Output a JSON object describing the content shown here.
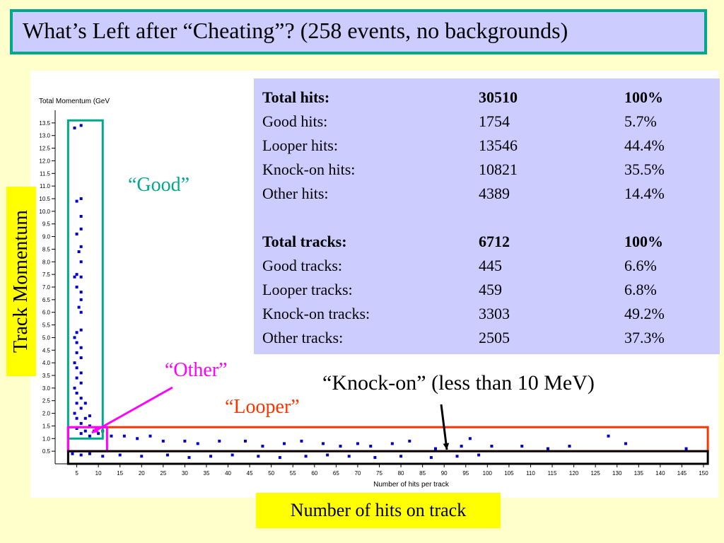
{
  "title": "What’s Left after “Cheating”? (258 events, no backgrounds)",
  "side_label": "Track Momentum",
  "bottom_label": "Number of hits on track",
  "stats": {
    "rows": [
      {
        "label": "Total hits:",
        "count": "30510",
        "pct": "100%",
        "bold": true
      },
      {
        "label": "Good hits:",
        "count": "1754",
        "pct": "5.7%"
      },
      {
        "label": "Looper hits:",
        "count": "13546",
        "pct": "44.4%"
      },
      {
        "label": "Knock-on hits:",
        "count": "10821",
        "pct": "35.5%"
      },
      {
        "label": "Other hits:",
        "count": "4389",
        "pct": "14.4%"
      },
      {
        "spacer": true
      },
      {
        "label": "Total tracks:",
        "count": "6712",
        "pct": "100%",
        "bold": true
      },
      {
        "label": "Good tracks:",
        "count": "445",
        "pct": "6.6%"
      },
      {
        "label": "Looper tracks:",
        "count": "459",
        "pct": "6.8%"
      },
      {
        "label": "Knock-on tracks:",
        "count": "3303",
        "pct": "49.2%"
      },
      {
        "label": "Other tracks:",
        "count": "2505",
        "pct": "37.3%"
      }
    ]
  },
  "annotations": {
    "good": "“Good”",
    "other": "“Other”",
    "looper": "“Looper”",
    "knock_on": "“Knock-on” (less than 10 MeV)"
  },
  "colors": {
    "background": "#ffffcc",
    "title_border": "#00a98c",
    "title_fill": "#ccccff",
    "points": "#0000cc",
    "good_box": "#00a98c",
    "other_box": "#ff00ff",
    "looper_box": "#ff3300",
    "knock_box": "#000000",
    "label_fill": "#ffff00"
  },
  "chart_data": {
    "type": "scatter",
    "ylabel": "Total Momentum (GeV",
    "xlabel": "Number of hits per track",
    "xlim": [
      0,
      150
    ],
    "ylim": [
      0,
      14
    ],
    "xticks": [
      5,
      10,
      15,
      20,
      25,
      30,
      35,
      40,
      45,
      50,
      55,
      60,
      65,
      70,
      75,
      80,
      85,
      90,
      95,
      100,
      105,
      110,
      115,
      120,
      125,
      130,
      135,
      140,
      145,
      150
    ],
    "yticks": [
      0.5,
      1.0,
      1.5,
      2.0,
      2.5,
      3.0,
      3.5,
      4.0,
      4.5,
      5.0,
      5.5,
      6.0,
      6.5,
      7.0,
      7.5,
      8.0,
      8.5,
      9.0,
      9.5,
      10.0,
      10.5,
      11.0,
      11.5,
      12.0,
      12.5,
      13.0,
      13.5
    ],
    "regions": [
      {
        "name": "Good",
        "x": [
          3,
          11
        ],
        "y": [
          1.0,
          13.6
        ]
      },
      {
        "name": "Looper",
        "x": [
          3,
          151
        ],
        "y": [
          0.5,
          1.45
        ]
      },
      {
        "name": "Other",
        "x": [
          3,
          12
        ],
        "y": [
          0.5,
          1.45
        ]
      },
      {
        "name": "Knock-on",
        "x": [
          3,
          151
        ],
        "y": [
          0.0,
          0.5
        ]
      }
    ],
    "points": [
      [
        4.5,
        13.3
      ],
      [
        6,
        13.4
      ],
      [
        5,
        10.4
      ],
      [
        6,
        10.5
      ],
      [
        6,
        9.8
      ],
      [
        6,
        9.3
      ],
      [
        5,
        9.1
      ],
      [
        6,
        8.0
      ],
      [
        5.5,
        8.4
      ],
      [
        6,
        8.6
      ],
      [
        5,
        7.5
      ],
      [
        6,
        7.4
      ],
      [
        4.5,
        7.4
      ],
      [
        5,
        7.0
      ],
      [
        6,
        6.8
      ],
      [
        6,
        6.5
      ],
      [
        5.5,
        6.2
      ],
      [
        6,
        6.0
      ],
      [
        5,
        5.2
      ],
      [
        6,
        5.3
      ],
      [
        4.5,
        5.0
      ],
      [
        5,
        4.8
      ],
      [
        6,
        4.6
      ],
      [
        5,
        4.4
      ],
      [
        6,
        4.2
      ],
      [
        4.5,
        4.0
      ],
      [
        5,
        3.8
      ],
      [
        6,
        3.6
      ],
      [
        5,
        3.4
      ],
      [
        6,
        3.2
      ],
      [
        4.5,
        3.0
      ],
      [
        5,
        2.8
      ],
      [
        6,
        2.6
      ],
      [
        5,
        2.4
      ],
      [
        6,
        2.2
      ],
      [
        4.5,
        2.0
      ],
      [
        5,
        1.8
      ],
      [
        6,
        1.6
      ],
      [
        5,
        1.4
      ],
      [
        6,
        1.2
      ],
      [
        7,
        1.8
      ],
      [
        7,
        1.3
      ],
      [
        8,
        1.9
      ],
      [
        8,
        1.5
      ],
      [
        7,
        2.4
      ],
      [
        8,
        1.1
      ],
      [
        9,
        1.3
      ],
      [
        10,
        1.2
      ],
      [
        11,
        1.3
      ],
      [
        13,
        1.1
      ],
      [
        16,
        1.1
      ],
      [
        19,
        1.0
      ],
      [
        22,
        1.1
      ],
      [
        25,
        0.9
      ],
      [
        30,
        0.9
      ],
      [
        33,
        0.8
      ],
      [
        38,
        0.9
      ],
      [
        44,
        0.9
      ],
      [
        48,
        0.7
      ],
      [
        53,
        0.8
      ],
      [
        57,
        0.9
      ],
      [
        62,
        0.8
      ],
      [
        66,
        0.7
      ],
      [
        70,
        0.8
      ],
      [
        73,
        0.7
      ],
      [
        78,
        0.8
      ],
      [
        82,
        0.9
      ],
      [
        88,
        0.6
      ],
      [
        94,
        0.7
      ],
      [
        96,
        1.0
      ],
      [
        101,
        0.7
      ],
      [
        108,
        0.7
      ],
      [
        114,
        0.6
      ],
      [
        119,
        0.7
      ],
      [
        128,
        1.1
      ],
      [
        132,
        0.8
      ],
      [
        146,
        0.6
      ],
      [
        4,
        0.4
      ],
      [
        6,
        0.35
      ],
      [
        8,
        0.4
      ],
      [
        11,
        0.3
      ],
      [
        15,
        0.35
      ],
      [
        20,
        0.3
      ],
      [
        26,
        0.35
      ],
      [
        31,
        0.25
      ],
      [
        36,
        0.3
      ],
      [
        41,
        0.35
      ],
      [
        47,
        0.3
      ],
      [
        52,
        0.25
      ],
      [
        58,
        0.3
      ],
      [
        63,
        0.35
      ],
      [
        68,
        0.3
      ],
      [
        74,
        0.25
      ],
      [
        80,
        0.3
      ],
      [
        87,
        0.25
      ],
      [
        93,
        0.3
      ],
      [
        98,
        0.35
      ]
    ]
  }
}
